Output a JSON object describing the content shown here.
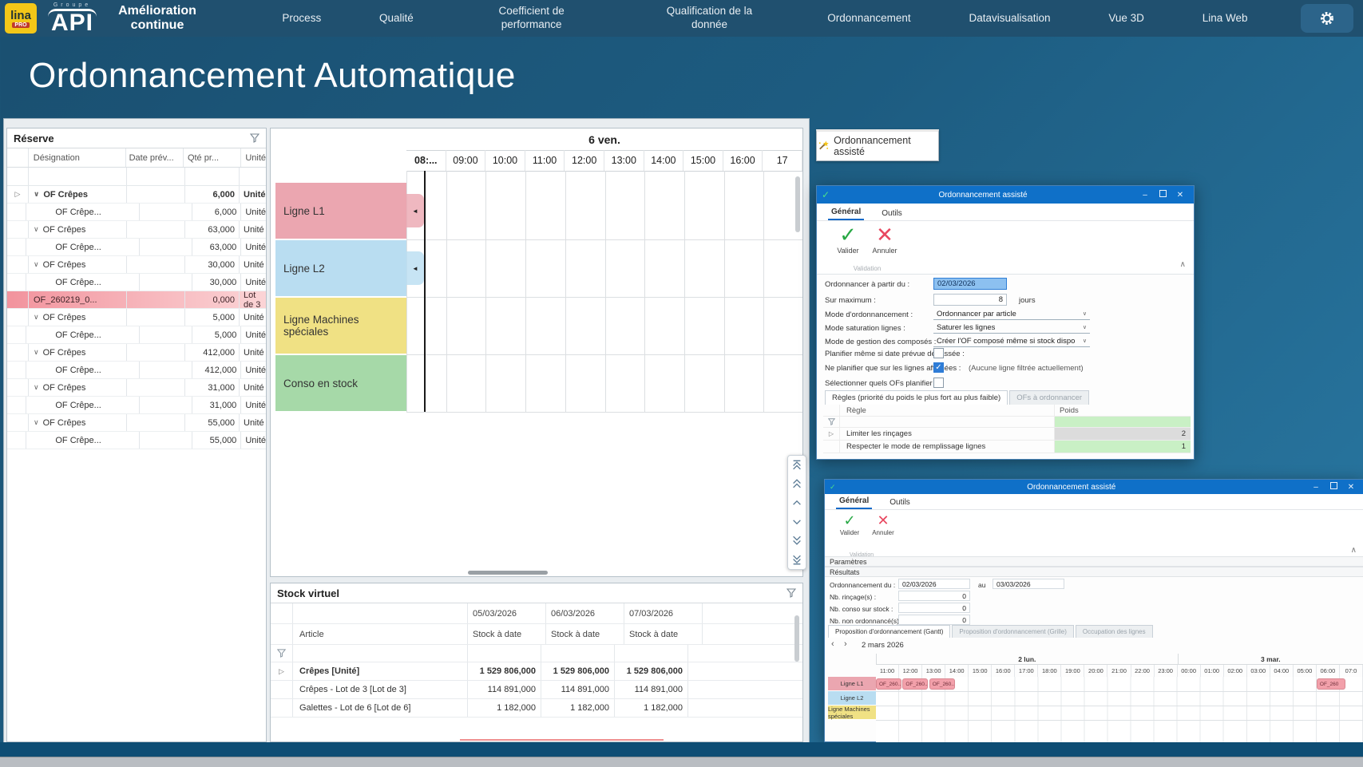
{
  "nav": {
    "logo_lina": "lina",
    "logo_lina_sub": "PRO",
    "logo_groupe": "Groupe",
    "logo_api": "API",
    "brand": "Amélioration continue",
    "items": [
      "Process",
      "Qualité",
      "Coefficient de performance",
      "Qualification de la donnée",
      "Ordonnancement",
      "Datavisualisation",
      "Vue 3D",
      "Lina Web"
    ]
  },
  "page_title": "Ordonnancement Automatique",
  "reserve": {
    "title": "Réserve",
    "columns": [
      "Désignation",
      "Date prév...",
      "Qté pr...",
      "Unité"
    ],
    "rows": [
      {
        "level": "group",
        "gutter": true,
        "bold": true,
        "name": "OF Crêpes",
        "date": "",
        "qty": "6,000",
        "unit": "Unité"
      },
      {
        "level": "child",
        "name": "OF Crêpe...",
        "date": "",
        "qty": "6,000",
        "unit": "Unité"
      },
      {
        "level": "group",
        "name": "OF Crêpes",
        "date": "",
        "qty": "63,000",
        "unit": "Unité"
      },
      {
        "level": "child",
        "name": "OF Crêpe...",
        "date": "",
        "qty": "63,000",
        "unit": "Unité"
      },
      {
        "level": "group",
        "name": "OF Crêpes",
        "date": "",
        "qty": "30,000",
        "unit": "Unité"
      },
      {
        "level": "child",
        "name": "OF Crêpe...",
        "date": "",
        "qty": "30,000",
        "unit": "Unité"
      },
      {
        "level": "flat",
        "highlight": true,
        "name": "OF_260219_0...",
        "date": "",
        "qty": "0,000",
        "unit": "Lot de 3"
      },
      {
        "level": "group",
        "name": "OF Crêpes",
        "date": "",
        "qty": "5,000",
        "unit": "Unité"
      },
      {
        "level": "child",
        "name": "OF Crêpe...",
        "date": "",
        "qty": "5,000",
        "unit": "Unité"
      },
      {
        "level": "group",
        "name": "OF Crêpes",
        "date": "",
        "qty": "412,000",
        "unit": "Unité"
      },
      {
        "level": "child",
        "name": "OF Crêpe...",
        "date": "",
        "qty": "412,000",
        "unit": "Unité"
      },
      {
        "level": "group",
        "name": "OF Crêpes",
        "date": "",
        "qty": "31,000",
        "unit": "Unité"
      },
      {
        "level": "child",
        "name": "OF Crêpe...",
        "date": "",
        "qty": "31,000",
        "unit": "Unité"
      },
      {
        "level": "group",
        "name": "OF Crêpes",
        "date": "",
        "qty": "55,000",
        "unit": "Unité"
      },
      {
        "level": "child",
        "name": "OF Crêpe...",
        "date": "",
        "qty": "55,000",
        "unit": "Unité"
      }
    ]
  },
  "gantt": {
    "day_label": "6 ven.",
    "hours": [
      "08:...",
      "09:00",
      "10:00",
      "11:00",
      "12:00",
      "13:00",
      "14:00",
      "15:00",
      "16:00",
      "17"
    ],
    "rows": [
      {
        "label": "Ligne L1",
        "color": "#eba6b0",
        "marker": true
      },
      {
        "label": "Ligne L2",
        "color": "#b9ddf1",
        "marker": true
      },
      {
        "label": "Ligne Machines spéciales",
        "color": "#f0e184",
        "marker": false
      },
      {
        "label": "Conso en stock",
        "color": "#a6d9a8",
        "marker": false
      }
    ],
    "marker_glyph": "◄"
  },
  "stock": {
    "title": "Stock virtuel",
    "article_header": "Article",
    "stock_header": "Stock à date",
    "date_columns": [
      "05/03/2026",
      "06/03/2026",
      "07/03/2026"
    ],
    "rows": [
      {
        "article": "Crêpes [Unité]",
        "bold": true,
        "expander": true,
        "values": [
          "1 529 806,000",
          "1 529 806,000",
          "1 529 806,000"
        ]
      },
      {
        "article": "Crêpes - Lot de 3 [Lot de 3]",
        "values": [
          "114 891,000",
          "114 891,000",
          "114 891,000"
        ]
      },
      {
        "article": "Galettes - Lot de 6 [Lot de 6]",
        "values": [
          "1 182,000",
          "1 182,000",
          "1 182,000"
        ]
      }
    ]
  },
  "assist_button": {
    "label": "Ordonnancement assisté"
  },
  "dialog1": {
    "title": "Ordonnancement assisté",
    "tabs": [
      "Général",
      "Outils"
    ],
    "valider": "Valider",
    "annuler": "Annuler",
    "group_label": "Validation",
    "fields": [
      {
        "type": "date",
        "label": "Ordonnancer à partir du :",
        "value": "02/03/2026"
      },
      {
        "type": "number",
        "label": "Sur maximum :",
        "value": "8",
        "suffix": "jours"
      },
      {
        "type": "select",
        "label": "Mode d'ordonnancement :",
        "value": "Ordonnancer par article"
      },
      {
        "type": "select",
        "label": "Mode saturation lignes :",
        "value": "Saturer les lignes"
      },
      {
        "type": "select",
        "label": "Mode de gestion des composés :",
        "value": "Créer l'OF composé même si stock dispo"
      },
      {
        "type": "checkbox",
        "label": "Planifier même si date prévue dépassée :",
        "checked": false
      },
      {
        "type": "checkbox",
        "label": "Ne planifier que sur les lignes affichées :",
        "checked": true,
        "note": "(Aucune ligne filtrée actuellement)"
      },
      {
        "type": "checkbox",
        "label": "Sélectionner quels OFs planifier :",
        "checked": false
      }
    ],
    "rules_tabs": [
      "Règles (priorité du poids le plus fort au plus faible)",
      "OFs à ordonnancer"
    ],
    "rules_columns": [
      "Règle",
      "Poids"
    ],
    "rules": [
      {
        "rule": "Limiter les rinçages",
        "poids": "2",
        "cell": "gray",
        "expander": true
      },
      {
        "rule": "Respecter le mode de remplissage lignes",
        "poids": "1",
        "cell": "green",
        "expander": false
      }
    ]
  },
  "dialog2": {
    "title": "Ordonnancement assisté",
    "tabs": [
      "Général",
      "Outils"
    ],
    "valider": "Valider",
    "annuler": "Annuler",
    "group_label": "Validation",
    "sections": [
      "Paramètres",
      "Résultats"
    ],
    "fields": [
      {
        "label": "Ordonnancement du :",
        "value": "02/03/2026",
        "mid": "au",
        "value2": "03/03/2026"
      },
      {
        "label": "Nb. rinçage(s) :",
        "value": "0"
      },
      {
        "label": "Nb. conso sur stock :",
        "value": "0"
      },
      {
        "label": "Nb. non ordonnancé(s) :",
        "value": "0"
      }
    ],
    "result_tabs": [
      "Proposition d'ordonnancement (Gantt)",
      "Proposition d'ordonnancement (Grille)",
      "Occupation des lignes"
    ],
    "nav_date": "2 mars 2026",
    "gantt": {
      "days": [
        {
          "label": "2 lun.",
          "cells": 13
        },
        {
          "label": "3 mar.",
          "cells": 8
        }
      ],
      "hours": [
        "11:00",
        "12:00",
        "13:00",
        "14:00",
        "15:00",
        "16:00",
        "17:00",
        "18:00",
        "19:00",
        "20:00",
        "21:00",
        "22:00",
        "23:00",
        "00:00",
        "01:00",
        "02:00",
        "03:00",
        "04:00",
        "05:00",
        "06:00",
        "07:0"
      ],
      "rows": [
        {
          "label": "Ligne L1",
          "color": "#eba6b0"
        },
        {
          "label": "Ligne L2",
          "color": "#b9ddf1"
        },
        {
          "label": "Ligne Machines spéciales",
          "color": "#f0e184"
        }
      ],
      "bars": [
        {
          "row": 0,
          "start": 0,
          "width": 1.1,
          "label": "OF_260..."
        },
        {
          "row": 0,
          "start": 1.15,
          "width": 1.1,
          "label": "OF_260..."
        },
        {
          "row": 0,
          "start": 2.3,
          "width": 1.1,
          "label": "OF_260..."
        },
        {
          "row": 0,
          "start": 19.0,
          "width": 1.25,
          "label": "OF_260"
        }
      ]
    }
  },
  "colors": {
    "navbar": "#20506f",
    "dialog_titlebar": "#0f70c8",
    "highlight_row_start": "#f2939d",
    "poids_green": "#c9f0c5",
    "poids_gray": "#dcdcdc",
    "valider_green": "#27a844",
    "annuler_red": "#e8475f"
  }
}
